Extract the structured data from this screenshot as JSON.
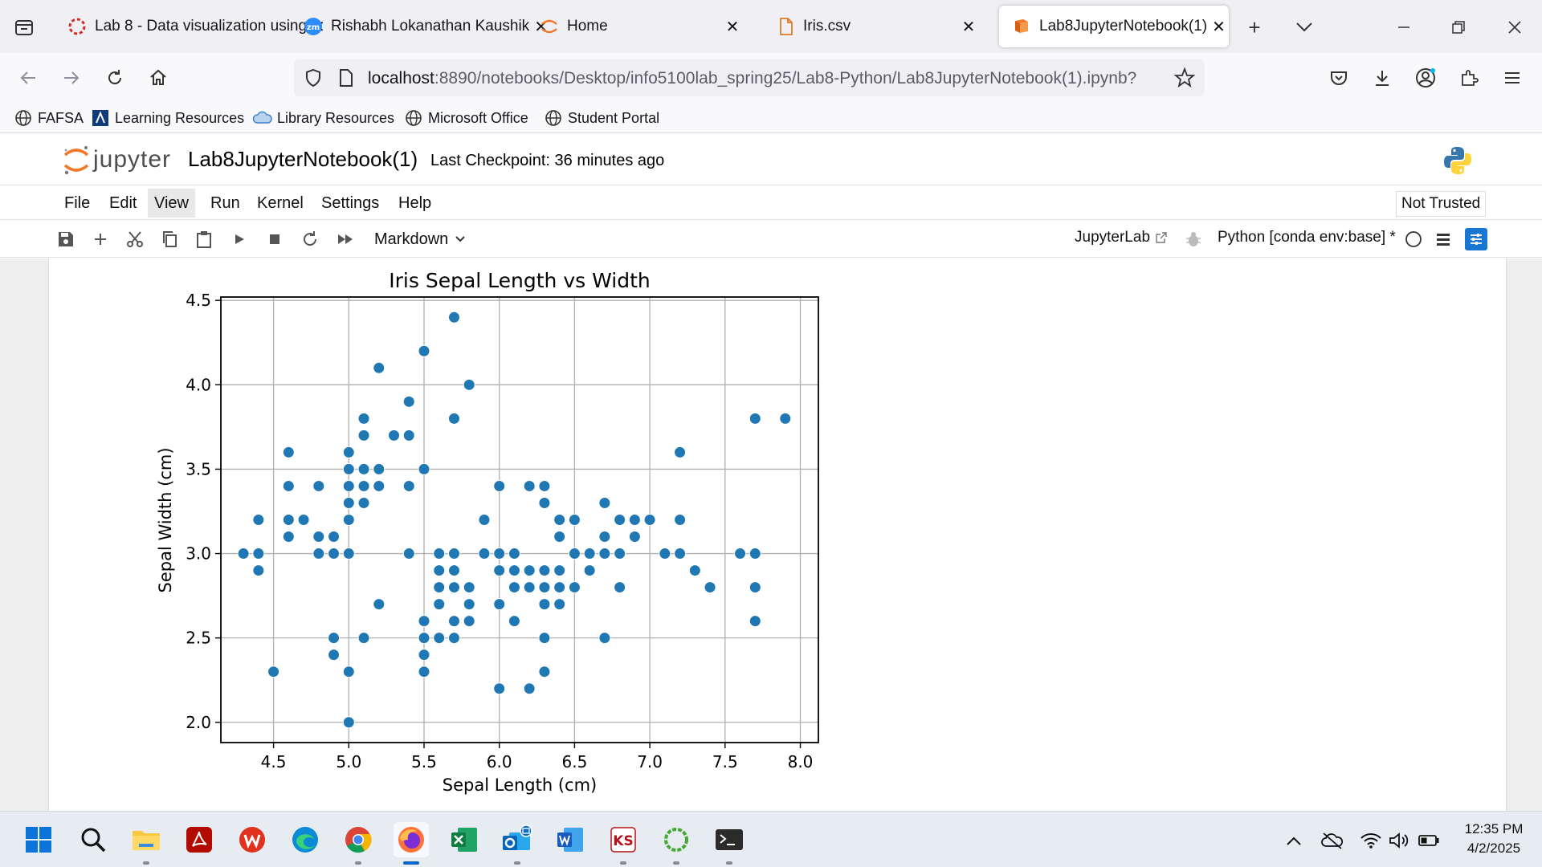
{
  "browser": {
    "tabs": [
      {
        "title": "Lab 8 - Data visualization using",
        "icon": "spinner-icon",
        "active": false
      },
      {
        "title": "Rishabh Lokanathan Kaushik",
        "icon": "zoom-icon",
        "active": false
      },
      {
        "title": "Home",
        "icon": "jupyter-icon",
        "active": false
      },
      {
        "title": "Iris.csv",
        "icon": "file-icon",
        "active": false
      },
      {
        "title": "Lab8JupyterNotebook(1)",
        "icon": "notebook-icon",
        "active": true
      }
    ],
    "url_host": "localhost",
    "url_rest": ":8890/notebooks/Desktop/info5100lab_spring25/Lab8-Python/Lab8JupyterNotebook(1).ipynb?",
    "bookmarks": [
      {
        "label": "FAFSA",
        "icon": "globe-icon"
      },
      {
        "label": "Learning Resources",
        "icon": "learning-icon"
      },
      {
        "label": "Library Resources",
        "icon": "cloud-icon"
      },
      {
        "label": "Microsoft Office",
        "icon": "globe-icon"
      },
      {
        "label": "Student Portal",
        "icon": "globe-icon"
      }
    ]
  },
  "jupyter": {
    "logo_text": "jupyter",
    "notebook_title": "Lab8JupyterNotebook(1)",
    "checkpoint": "Last Checkpoint: 36 minutes ago",
    "menu": [
      "File",
      "Edit",
      "View",
      "Run",
      "Kernel",
      "Settings",
      "Help"
    ],
    "selected_menu": "View",
    "trusted": "Not Trusted",
    "cell_type": "Markdown",
    "jupyterlab_link": "JupyterLab",
    "kernel": "Python [conda env:base] *"
  },
  "chart_data": {
    "type": "scatter",
    "title": "Iris Sepal Length vs Width",
    "xlabel": "Sepal Length (cm)",
    "ylabel": "Sepal Width (cm)",
    "xlim": [
      4.15,
      8.12
    ],
    "ylim": [
      1.88,
      4.52
    ],
    "xticks": [
      "4.5",
      "5.0",
      "5.5",
      "6.0",
      "6.5",
      "7.0",
      "7.5",
      "8.0"
    ],
    "yticks": [
      "2.0",
      "2.5",
      "3.0",
      "3.5",
      "4.0",
      "4.5"
    ],
    "grid": true,
    "color": "#1f77b4",
    "points": [
      [
        4.3,
        3.0
      ],
      [
        4.4,
        3.0
      ],
      [
        4.4,
        2.9
      ],
      [
        4.4,
        3.2
      ],
      [
        4.5,
        2.3
      ],
      [
        4.6,
        3.6
      ],
      [
        4.6,
        3.4
      ],
      [
        4.6,
        3.2
      ],
      [
        4.6,
        3.1
      ],
      [
        4.7,
        3.2
      ],
      [
        4.8,
        3.4
      ],
      [
        4.8,
        3.1
      ],
      [
        4.8,
        3.0
      ],
      [
        4.9,
        3.1
      ],
      [
        4.9,
        3.0
      ],
      [
        4.9,
        2.5
      ],
      [
        4.9,
        2.4
      ],
      [
        5.0,
        3.6
      ],
      [
        5.0,
        3.5
      ],
      [
        5.0,
        3.4
      ],
      [
        5.0,
        3.3
      ],
      [
        5.0,
        3.2
      ],
      [
        5.0,
        3.0
      ],
      [
        5.0,
        2.3
      ],
      [
        5.0,
        2.0
      ],
      [
        5.1,
        3.8
      ],
      [
        5.1,
        3.7
      ],
      [
        5.1,
        3.5
      ],
      [
        5.1,
        3.4
      ],
      [
        5.1,
        3.3
      ],
      [
        5.1,
        2.5
      ],
      [
        5.2,
        4.1
      ],
      [
        5.2,
        3.5
      ],
      [
        5.2,
        3.4
      ],
      [
        5.2,
        2.7
      ],
      [
        5.3,
        3.7
      ],
      [
        5.4,
        3.9
      ],
      [
        5.4,
        3.7
      ],
      [
        5.4,
        3.4
      ],
      [
        5.4,
        3.0
      ],
      [
        5.5,
        4.2
      ],
      [
        5.5,
        3.5
      ],
      [
        5.5,
        2.6
      ],
      [
        5.5,
        2.5
      ],
      [
        5.5,
        2.4
      ],
      [
        5.5,
        2.3
      ],
      [
        5.6,
        3.0
      ],
      [
        5.6,
        2.9
      ],
      [
        5.6,
        2.8
      ],
      [
        5.6,
        2.7
      ],
      [
        5.6,
        2.5
      ],
      [
        5.7,
        4.4
      ],
      [
        5.7,
        3.8
      ],
      [
        5.7,
        3.0
      ],
      [
        5.7,
        2.9
      ],
      [
        5.7,
        2.8
      ],
      [
        5.7,
        2.6
      ],
      [
        5.7,
        2.5
      ],
      [
        5.8,
        4.0
      ],
      [
        5.8,
        2.8
      ],
      [
        5.8,
        2.7
      ],
      [
        5.8,
        2.6
      ],
      [
        5.9,
        3.2
      ],
      [
        5.9,
        3.0
      ],
      [
        6.0,
        3.4
      ],
      [
        6.0,
        3.0
      ],
      [
        6.0,
        2.9
      ],
      [
        6.0,
        2.7
      ],
      [
        6.0,
        2.2
      ],
      [
        6.1,
        3.0
      ],
      [
        6.1,
        2.9
      ],
      [
        6.1,
        2.8
      ],
      [
        6.1,
        2.6
      ],
      [
        6.2,
        3.4
      ],
      [
        6.2,
        2.9
      ],
      [
        6.2,
        2.8
      ],
      [
        6.2,
        2.2
      ],
      [
        6.3,
        3.4
      ],
      [
        6.3,
        3.3
      ],
      [
        6.3,
        2.9
      ],
      [
        6.3,
        2.8
      ],
      [
        6.3,
        2.7
      ],
      [
        6.3,
        2.5
      ],
      [
        6.3,
        2.3
      ],
      [
        6.4,
        3.2
      ],
      [
        6.4,
        3.1
      ],
      [
        6.4,
        2.9
      ],
      [
        6.4,
        2.8
      ],
      [
        6.4,
        2.7
      ],
      [
        6.5,
        3.2
      ],
      [
        6.5,
        3.0
      ],
      [
        6.5,
        2.8
      ],
      [
        6.6,
        3.0
      ],
      [
        6.6,
        2.9
      ],
      [
        6.7,
        3.3
      ],
      [
        6.7,
        3.1
      ],
      [
        6.7,
        3.0
      ],
      [
        6.7,
        2.5
      ],
      [
        6.8,
        3.2
      ],
      [
        6.8,
        3.0
      ],
      [
        6.8,
        2.8
      ],
      [
        6.9,
        3.2
      ],
      [
        6.9,
        3.1
      ],
      [
        7.0,
        3.2
      ],
      [
        7.1,
        3.0
      ],
      [
        7.2,
        3.6
      ],
      [
        7.2,
        3.2
      ],
      [
        7.2,
        3.0
      ],
      [
        7.3,
        2.9
      ],
      [
        7.4,
        2.8
      ],
      [
        7.6,
        3.0
      ],
      [
        7.7,
        3.8
      ],
      [
        7.7,
        3.0
      ],
      [
        7.7,
        2.8
      ],
      [
        7.7,
        2.6
      ],
      [
        7.9,
        3.8
      ]
    ]
  },
  "taskbar": {
    "clock_time": "12:35 PM",
    "clock_date": "4/2/2025"
  }
}
